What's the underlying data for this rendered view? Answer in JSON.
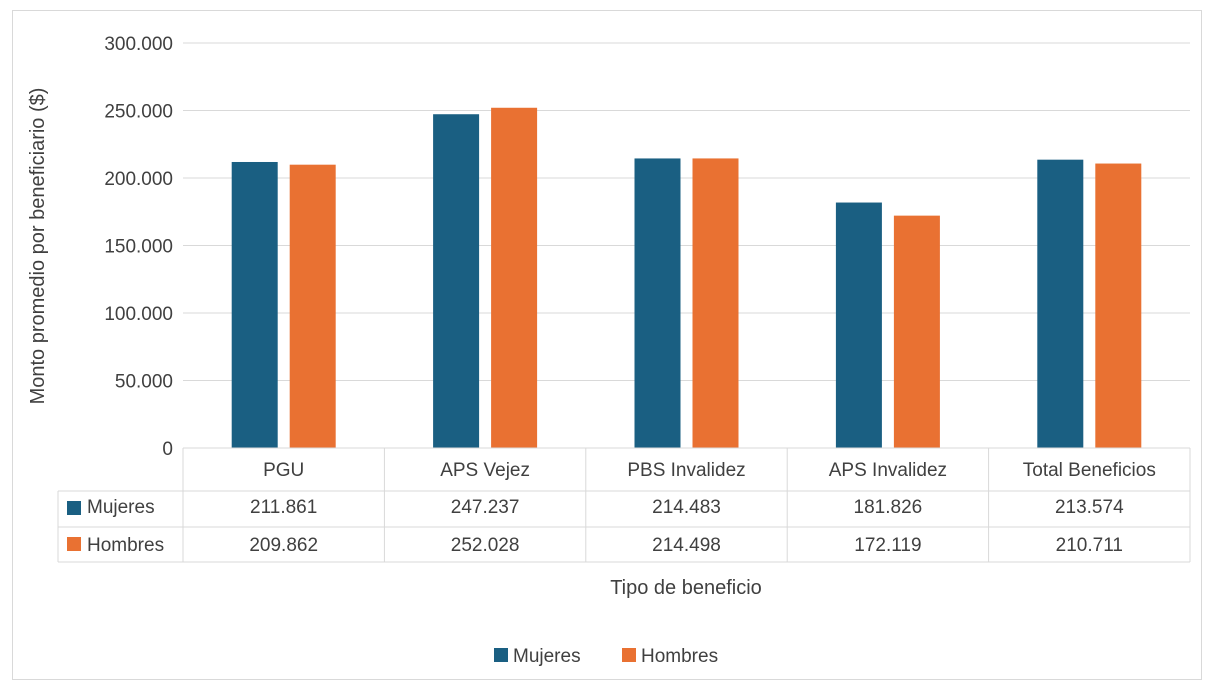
{
  "chart_data": {
    "type": "bar",
    "xlabel": "Tipo de beneficio",
    "ylabel": "Monto promedio por beneficiario ($)",
    "categories": [
      "PGU",
      "APS Vejez",
      "PBS Invalidez",
      "APS Invalidez",
      "Total Beneficios"
    ],
    "series": [
      {
        "name": "Mujeres",
        "color": "#1a5f82",
        "values": [
          211861,
          247237,
          214483,
          181826,
          213574
        ],
        "labels": [
          "211.861",
          "247.237",
          "214.483",
          "181.826",
          "213.574"
        ]
      },
      {
        "name": "Hombres",
        "color": "#e97132",
        "values": [
          209862,
          252028,
          214498,
          172119,
          210711
        ],
        "labels": [
          "209.862",
          "252.028",
          "214.498",
          "172.119",
          "210.711"
        ]
      }
    ],
    "ylim": [
      0,
      300000
    ],
    "yticks": [
      0,
      50000,
      100000,
      150000,
      200000,
      250000,
      300000
    ],
    "ytick_labels": [
      "0",
      "50.000",
      "100.000",
      "150.000",
      "200.000",
      "250.000",
      "300.000"
    ],
    "grid": true,
    "legend_position": "bottom",
    "data_table": true
  }
}
